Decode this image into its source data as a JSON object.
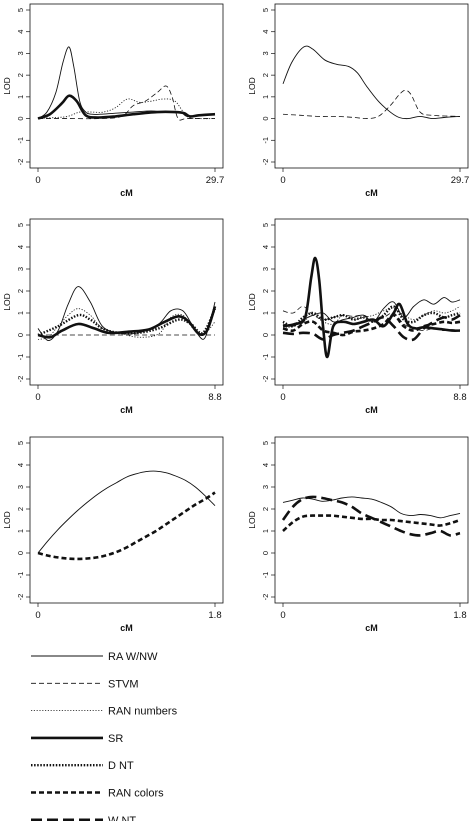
{
  "chart_data": [
    {
      "type": "line",
      "panel": "top-left",
      "xlabel": "cM",
      "ylabel": "LOD",
      "xlim": [
        0,
        29.7
      ],
      "ylim": [
        -2,
        5
      ],
      "x_ticks": [
        "0",
        "29.7"
      ],
      "y_ticks": [
        "-2",
        "-1",
        "0",
        "1",
        "2",
        "3",
        "4",
        "5"
      ],
      "series": [
        {
          "name": "RA W/NW",
          "x": [
            0,
            1.5,
            3,
            4.2,
            5.2,
            6,
            7,
            8,
            9,
            10.5,
            13,
            16,
            19,
            21,
            23,
            24,
            25,
            27,
            29.7
          ],
          "y": [
            0,
            0.3,
            1.2,
            2.6,
            3.3,
            2.4,
            0.8,
            0.3,
            0.2,
            0.2,
            0.25,
            0.3,
            0.35,
            0.3,
            0.3,
            0.3,
            0.1,
            0.15,
            0.2
          ]
        },
        {
          "name": "STVM",
          "x": [
            0,
            5,
            10,
            14,
            16,
            18,
            20,
            21.5,
            22.5,
            23.5,
            25,
            29.7
          ],
          "y": [
            0,
            0,
            0,
            0.1,
            0.6,
            0.8,
            1.2,
            1.5,
            1.0,
            0,
            0,
            0
          ]
        },
        {
          "name": "RAN numbers",
          "x": [
            0,
            3,
            5,
            7,
            9,
            11,
            13,
            15,
            17,
            19,
            21,
            23,
            25,
            27,
            29.7
          ],
          "y": [
            0,
            0.05,
            0.1,
            0.3,
            0.3,
            0.3,
            0.5,
            0.9,
            0.75,
            0.8,
            0.9,
            0.8,
            0.1,
            0,
            0
          ]
        },
        {
          "name": "SR",
          "x": [
            0,
            2,
            4,
            5.2,
            6.5,
            8,
            10,
            13,
            16,
            20,
            23,
            24.5,
            25.5,
            27,
            29.7
          ],
          "y": [
            0,
            0.2,
            0.7,
            1.05,
            0.8,
            0.15,
            0.05,
            0.1,
            0.2,
            0.3,
            0.3,
            0.25,
            0.1,
            0.15,
            0.2
          ]
        }
      ]
    },
    {
      "type": "line",
      "panel": "top-right",
      "xlabel": "cM",
      "ylabel": "LOD",
      "xlim": [
        0,
        29.7
      ],
      "ylim": [
        -2,
        5
      ],
      "x_ticks": [
        "0",
        "29.7"
      ],
      "y_ticks": [
        "-2",
        "-1",
        "0",
        "1",
        "2",
        "3",
        "4",
        "5"
      ],
      "series": [
        {
          "name": "RA W/NW",
          "x": [
            0,
            1.5,
            3.5,
            5,
            7,
            9,
            11,
            12.5,
            14,
            16,
            18,
            19.5,
            21,
            23,
            25,
            27,
            29.7
          ],
          "y": [
            1.6,
            2.6,
            3.3,
            3.2,
            2.7,
            2.5,
            2.4,
            2.1,
            1.5,
            0.8,
            0.3,
            0.05,
            0,
            0.1,
            0,
            0.05,
            0.1
          ]
        },
        {
          "name": "STVM",
          "x": [
            0,
            3,
            6,
            9,
            12,
            14,
            16,
            18,
            19.5,
            20.5,
            21.5,
            23,
            25,
            29.7
          ],
          "y": [
            0.2,
            0.15,
            0.1,
            0.1,
            0.05,
            0,
            0.1,
            0.6,
            1.1,
            1.3,
            1.1,
            0.3,
            0.15,
            0.1
          ]
        }
      ]
    },
    {
      "type": "line",
      "panel": "middle-left",
      "xlabel": "cM",
      "ylabel": "LOD",
      "xlim": [
        0,
        8.8
      ],
      "ylim": [
        -2,
        5
      ],
      "x_ticks": [
        "0",
        "8.8"
      ],
      "y_ticks": [
        "-2",
        "-1",
        "0",
        "1",
        "2",
        "3",
        "4",
        "5"
      ],
      "series": [
        {
          "name": "RA W/NW",
          "x": [
            0,
            0.5,
            1,
            1.5,
            2,
            2.6,
            3.2,
            4,
            5,
            6,
            6.6,
            7.2,
            7.7,
            8.2,
            8.5,
            8.8
          ],
          "y": [
            0.3,
            -0.25,
            0.2,
            1.4,
            2.2,
            1.5,
            0.4,
            0.1,
            0.1,
            0.5,
            1.1,
            1.1,
            0.4,
            -0.2,
            0.4,
            1.5
          ]
        },
        {
          "name": "STVM",
          "x": [
            0,
            8.8
          ],
          "y": [
            0,
            0
          ]
        },
        {
          "name": "RAN numbers",
          "x": [
            0,
            0.5,
            1,
            1.5,
            2,
            2.6,
            3.2,
            4,
            5,
            6,
            6.6,
            7.2,
            7.7,
            8.2,
            8.8
          ],
          "y": [
            -0.2,
            -0.1,
            0.4,
            0.9,
            1.2,
            0.9,
            0.3,
            0.1,
            -0.1,
            0.05,
            0.8,
            0.9,
            0.3,
            0,
            0.6
          ]
        },
        {
          "name": "SR",
          "x": [
            0,
            0.6,
            1.2,
            2,
            2.8,
            3.5,
            4.5,
            5.5,
            6.3,
            7,
            7.5,
            8,
            8.4,
            8.8
          ],
          "y": [
            0,
            -0.1,
            0.2,
            0.5,
            0.3,
            0.1,
            0.15,
            0.25,
            0.6,
            0.85,
            0.6,
            0.05,
            0.2,
            1.3
          ]
        },
        {
          "name": "D NT",
          "x": [
            0,
            1,
            2,
            2.6,
            3.2,
            4,
            5,
            6,
            7,
            7.6,
            8.2,
            8.8
          ],
          "y": [
            0,
            0.4,
            0.9,
            0.7,
            0.3,
            0.1,
            0.1,
            0.3,
            0.7,
            0.5,
            0.1,
            1.2
          ]
        }
      ]
    },
    {
      "type": "line",
      "panel": "middle-right",
      "xlabel": "cM",
      "ylabel": "LOD",
      "xlim": [
        0,
        8.8
      ],
      "ylim": [
        -2,
        5
      ],
      "x_ticks": [
        "0",
        "8.8"
      ],
      "y_ticks": [
        "-2",
        "-1",
        "0",
        "1",
        "2",
        "3",
        "4",
        "5"
      ],
      "series": [
        {
          "name": "RA W/NW",
          "x": [
            0,
            0.5,
            1,
            1.5,
            2,
            2.5,
            3,
            3.5,
            4,
            4.5,
            5,
            5.5,
            6,
            6.5,
            7,
            7.5,
            8,
            8.4,
            8.8
          ],
          "y": [
            0.5,
            0.4,
            0.7,
            0.9,
            1.0,
            0.6,
            0.7,
            0.8,
            0.9,
            0.6,
            1.2,
            1.5,
            0.8,
            1.3,
            1.6,
            1.4,
            1.7,
            1.5,
            1.6
          ]
        },
        {
          "name": "STVM",
          "x": [
            0,
            0.5,
            1,
            1.5,
            2,
            2.5,
            3,
            3.5,
            4,
            4.5,
            5,
            5.5,
            6,
            6.5,
            7,
            7.5,
            8,
            8.4,
            8.8
          ],
          "y": [
            1.1,
            1.0,
            1.3,
            0.9,
            0.7,
            0.8,
            0.9,
            0.85,
            0.9,
            0.7,
            0.8,
            1.0,
            0.5,
            0.3,
            0.2,
            0.3,
            0.2,
            0.25,
            0.2
          ]
        },
        {
          "name": "RAN numbers",
          "x": [
            0,
            0.5,
            1,
            1.5,
            2,
            2.5,
            3,
            3.5,
            4,
            4.5,
            5,
            5.5,
            6,
            6.5,
            7,
            7.5,
            8,
            8.4,
            8.8
          ],
          "y": [
            0.3,
            0.4,
            0.6,
            0.9,
            0.6,
            0.5,
            0.9,
            0.7,
            0.8,
            0.9,
            1.1,
            1.2,
            0.9,
            0.7,
            0.9,
            1.1,
            1.0,
            1.1,
            1.3
          ]
        },
        {
          "name": "SR",
          "x": [
            0,
            0.6,
            1.1,
            1.4,
            1.6,
            1.8,
            2.0,
            2.2,
            2.5,
            3,
            3.5,
            4,
            4.5,
            5,
            5.5,
            5.8,
            6.2,
            6.6,
            7,
            7.5,
            8,
            8.4,
            8.8
          ],
          "y": [
            0.4,
            0.5,
            0.8,
            2.6,
            3.5,
            2.5,
            0.3,
            -1.0,
            0.4,
            0.6,
            0.5,
            0.6,
            0.7,
            0.4,
            1.0,
            1.4,
            0.5,
            0.3,
            0.35,
            0.3,
            0.25,
            0.2,
            0.2
          ]
        },
        {
          "name": "D NT",
          "x": [
            0,
            0.5,
            1,
            1.5,
            2,
            2.5,
            3,
            3.5,
            4,
            4.5,
            5,
            5.5,
            6,
            6.5,
            7,
            7.5,
            8,
            8.4,
            8.8
          ],
          "y": [
            0.6,
            0.4,
            0.8,
            1.0,
            0.7,
            0.8,
            0.9,
            0.7,
            0.8,
            0.6,
            0.9,
            1.3,
            0.7,
            0.6,
            0.9,
            1.0,
            0.8,
            0.9,
            1.0
          ]
        },
        {
          "name": "RAN colors",
          "x": [
            0,
            0.5,
            1,
            1.5,
            2,
            2.5,
            3,
            3.5,
            4,
            4.5,
            5,
            5.5,
            6,
            6.5,
            7,
            7.5,
            8,
            8.4,
            8.8
          ],
          "y": [
            0.3,
            0.2,
            0.5,
            0.6,
            0.2,
            0.1,
            0.0,
            0.15,
            0.2,
            0.3,
            0.5,
            0.9,
            0.4,
            0.2,
            0.4,
            0.5,
            0.6,
            0.55,
            0.6
          ]
        },
        {
          "name": "W NT",
          "x": [
            0,
            0.5,
            1,
            1.5,
            2,
            2.5,
            3,
            3.5,
            4,
            4.5,
            5,
            5.5,
            6,
            6.5,
            7,
            7.5,
            8,
            8.4,
            8.8
          ],
          "y": [
            0.1,
            0.05,
            0.1,
            0.05,
            -0.2,
            0.0,
            0.1,
            0.2,
            0.4,
            0.6,
            0.8,
            0.4,
            -0.1,
            -0.2,
            0.3,
            0.6,
            0.8,
            0.7,
            0.9
          ]
        }
      ]
    },
    {
      "type": "line",
      "panel": "bottom-left",
      "xlabel": "cM",
      "ylabel": "LOD",
      "xlim": [
        0,
        1.8
      ],
      "ylim": [
        -2,
        5
      ],
      "x_ticks": [
        "0",
        "1.8"
      ],
      "y_ticks": [
        "-2",
        "-1",
        "0",
        "1",
        "2",
        "3",
        "4",
        "5"
      ],
      "series": [
        {
          "name": "RA W/NW",
          "x": [
            0,
            0.1,
            0.2,
            0.3,
            0.4,
            0.5,
            0.6,
            0.7,
            0.8,
            0.9,
            1.0,
            1.1,
            1.2,
            1.3,
            1.4,
            1.5,
            1.6,
            1.7,
            1.8
          ],
          "y": [
            0,
            0.55,
            1.05,
            1.5,
            1.92,
            2.3,
            2.65,
            2.95,
            3.2,
            3.45,
            3.6,
            3.7,
            3.72,
            3.65,
            3.5,
            3.3,
            3.0,
            2.6,
            2.15
          ]
        },
        {
          "name": "RAN colors",
          "x": [
            0,
            0.1,
            0.2,
            0.3,
            0.4,
            0.5,
            0.6,
            0.7,
            0.8,
            0.9,
            1.0,
            1.1,
            1.2,
            1.3,
            1.4,
            1.5,
            1.6,
            1.7,
            1.8
          ],
          "y": [
            0,
            -0.12,
            -0.2,
            -0.25,
            -0.27,
            -0.25,
            -0.2,
            -0.1,
            0.05,
            0.25,
            0.5,
            0.75,
            1.0,
            1.3,
            1.6,
            1.9,
            2.2,
            2.45,
            2.75
          ]
        }
      ]
    },
    {
      "type": "line",
      "panel": "bottom-right",
      "xlabel": "cM",
      "ylabel": "LOD",
      "xlim": [
        0,
        1.8
      ],
      "ylim": [
        -2,
        5
      ],
      "x_ticks": [
        "0",
        "1.8"
      ],
      "y_ticks": [
        "-2",
        "-1",
        "0",
        "1",
        "2",
        "3",
        "4",
        "5"
      ],
      "series": [
        {
          "name": "RA W/NW",
          "x": [
            0,
            0.1,
            0.2,
            0.3,
            0.4,
            0.5,
            0.6,
            0.7,
            0.8,
            0.9,
            1.0,
            1.1,
            1.2,
            1.3,
            1.4,
            1.5,
            1.6,
            1.7,
            1.8
          ],
          "y": [
            2.3,
            2.4,
            2.5,
            2.45,
            2.35,
            2.4,
            2.5,
            2.55,
            2.5,
            2.45,
            2.3,
            2.1,
            1.8,
            1.7,
            1.75,
            1.7,
            1.6,
            1.7,
            1.8
          ]
        },
        {
          "name": "RAN colors",
          "x": [
            0,
            0.1,
            0.2,
            0.3,
            0.4,
            0.5,
            0.6,
            0.7,
            0.8,
            0.9,
            1.0,
            1.1,
            1.2,
            1.3,
            1.4,
            1.5,
            1.6,
            1.7,
            1.8
          ],
          "y": [
            1.0,
            1.4,
            1.65,
            1.7,
            1.7,
            1.7,
            1.65,
            1.6,
            1.55,
            1.55,
            1.5,
            1.5,
            1.45,
            1.4,
            1.35,
            1.3,
            1.25,
            1.35,
            1.5
          ]
        },
        {
          "name": "W NT",
          "x": [
            0,
            0.1,
            0.2,
            0.3,
            0.4,
            0.5,
            0.6,
            0.7,
            0.8,
            0.9,
            1.0,
            1.1,
            1.2,
            1.3,
            1.4,
            1.5,
            1.6,
            1.7,
            1.8
          ],
          "y": [
            1.5,
            2.1,
            2.45,
            2.55,
            2.5,
            2.4,
            2.3,
            2.1,
            1.8,
            1.6,
            1.4,
            1.2,
            1.0,
            0.85,
            0.8,
            0.9,
            1.0,
            0.8,
            0.9
          ]
        }
      ]
    }
  ],
  "legend": {
    "placement": "bottom",
    "entries": [
      {
        "label": "RA W/NW",
        "style": "solid-thin"
      },
      {
        "label": "STVM",
        "style": "dashed-thin"
      },
      {
        "label": "RAN numbers",
        "style": "dotted-thin"
      },
      {
        "label": "SR",
        "style": "solid-thick"
      },
      {
        "label": "D NT",
        "style": "dotted-thick"
      },
      {
        "label": "RAN colors",
        "style": "dashed-thick"
      },
      {
        "label": "W NT",
        "style": "long-dashed-thick"
      }
    ]
  },
  "line_color": "#111111"
}
